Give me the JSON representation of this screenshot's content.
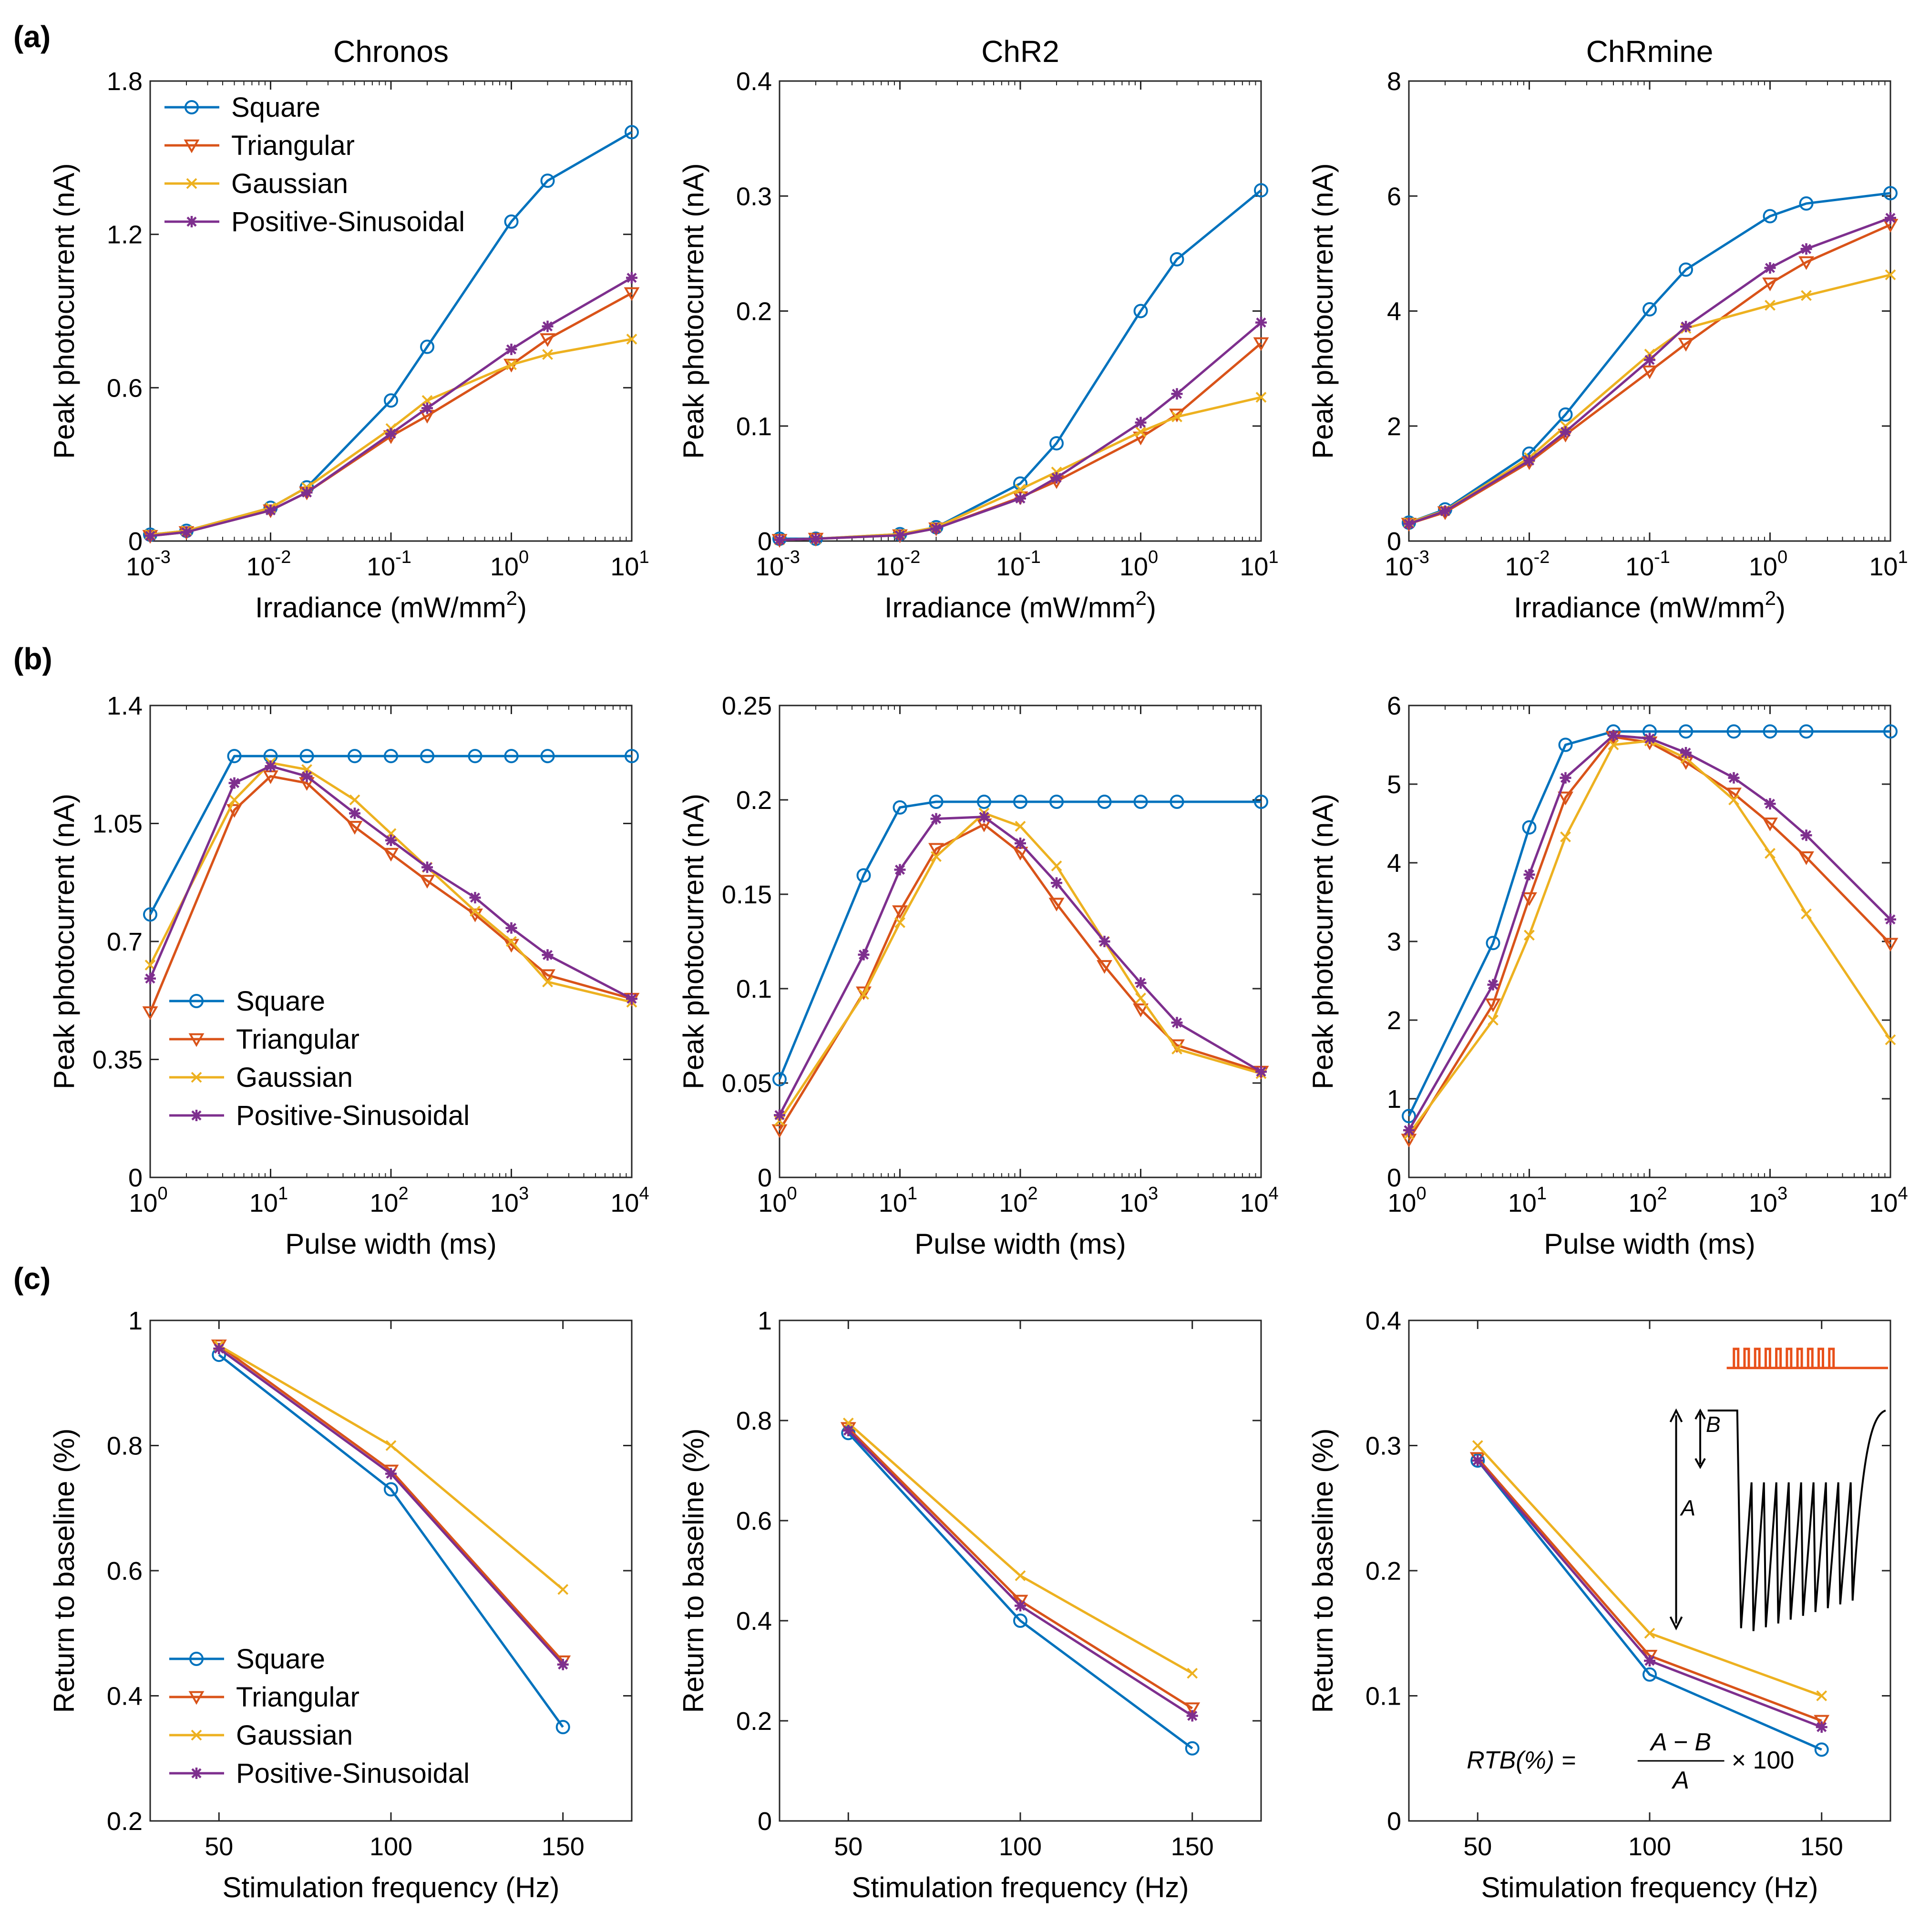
{
  "panel_labels": [
    "(a)",
    "(b)",
    "(c)"
  ],
  "colors": {
    "Square": "#0072BD",
    "Triangular": "#D95319",
    "Gaussian": "#EDB120",
    "Positive-Sinusoidal": "#7E2F8E",
    "axis": "#262626",
    "inset_pulses": "#E8501A",
    "inset_trace": "#000000"
  },
  "markers": {
    "Square": "circle",
    "Triangular": "triangle-down",
    "Gaussian": "x",
    "Positive-Sinusoidal": "asterisk"
  },
  "inset": {
    "label_a": "A",
    "label_b": "B",
    "formula_lhs": "RTB(%) =",
    "formula_num": "A − B",
    "formula_den": "A",
    "formula_tail": "× 100"
  },
  "chart_data": [
    {
      "id": "a1",
      "type": "line",
      "title": "Chronos",
      "xlabel": "Irradiance (mW/mm",
      "xlabel_sup": "2",
      "xlabel_tail": ")",
      "ylabel": "Peak photocurrent (nA)",
      "xscale": "log",
      "xlim": [
        0.001,
        10
      ],
      "ylim": [
        0,
        1.8
      ],
      "xticks": [
        0.001,
        0.01,
        0.1,
        1,
        10
      ],
      "xtick_labels": [
        [
          "10",
          "-3"
        ],
        [
          "10",
          "-2"
        ],
        [
          "10",
          "-1"
        ],
        [
          "10",
          "0"
        ],
        [
          "10",
          "1"
        ]
      ],
      "yticks": [
        0,
        0.6,
        1.2,
        1.8
      ],
      "ytick_labels": [
        "0",
        "0.6",
        "1.2",
        "1.8"
      ],
      "legend": "top-left",
      "x": [
        0.001,
        0.002,
        0.01,
        0.02,
        0.1,
        0.2,
        1,
        2,
        10
      ],
      "series": [
        {
          "name": "Square",
          "values": [
            0.025,
            0.04,
            0.13,
            0.21,
            0.55,
            0.76,
            1.25,
            1.41,
            1.6
          ]
        },
        {
          "name": "Triangular",
          "values": [
            0.02,
            0.035,
            0.12,
            0.19,
            0.41,
            0.49,
            0.69,
            0.79,
            0.97
          ]
        },
        {
          "name": "Gaussian",
          "values": [
            0.025,
            0.04,
            0.13,
            0.21,
            0.44,
            0.55,
            0.69,
            0.73,
            0.79
          ]
        },
        {
          "name": "Positive-Sinusoidal",
          "values": [
            0.02,
            0.035,
            0.12,
            0.19,
            0.42,
            0.52,
            0.75,
            0.84,
            1.03
          ]
        }
      ]
    },
    {
      "id": "a2",
      "type": "line",
      "title": "ChR2",
      "xlabel": "Irradiance (mW/mm",
      "xlabel_sup": "2",
      "xlabel_tail": ")",
      "ylabel": "Peak photocurrent (nA)",
      "xscale": "log",
      "xlim": [
        0.001,
        10
      ],
      "ylim": [
        0,
        0.4
      ],
      "xticks": [
        0.001,
        0.01,
        0.1,
        1,
        10
      ],
      "xtick_labels": [
        [
          "10",
          "-3"
        ],
        [
          "10",
          "-2"
        ],
        [
          "10",
          "-1"
        ],
        [
          "10",
          "0"
        ],
        [
          "10",
          "1"
        ]
      ],
      "yticks": [
        0,
        0.1,
        0.2,
        0.3,
        0.4
      ],
      "ytick_labels": [
        "0",
        "0.1",
        "0.2",
        "0.3",
        "0.4"
      ],
      "legend": "none",
      "x": [
        0.001,
        0.002,
        0.01,
        0.02,
        0.1,
        0.2,
        1,
        2,
        10
      ],
      "series": [
        {
          "name": "Square",
          "values": [
            0.002,
            0.002,
            0.006,
            0.012,
            0.05,
            0.085,
            0.2,
            0.245,
            0.305
          ]
        },
        {
          "name": "Triangular",
          "values": [
            0.001,
            0.002,
            0.005,
            0.011,
            0.038,
            0.052,
            0.09,
            0.11,
            0.172
          ]
        },
        {
          "name": "Gaussian",
          "values": [
            0.001,
            0.002,
            0.006,
            0.012,
            0.045,
            0.06,
            0.095,
            0.108,
            0.125
          ]
        },
        {
          "name": "Positive-Sinusoidal",
          "values": [
            0.001,
            0.002,
            0.005,
            0.011,
            0.037,
            0.055,
            0.103,
            0.128,
            0.19
          ]
        }
      ]
    },
    {
      "id": "a3",
      "type": "line",
      "title": "ChRmine",
      "xlabel": "Irradiance (mW/mm",
      "xlabel_sup": "2",
      "xlabel_tail": ")",
      "ylabel": "Peak photocurrent (nA)",
      "xscale": "log",
      "xlim": [
        0.001,
        10
      ],
      "ylim": [
        0,
        8
      ],
      "xticks": [
        0.001,
        0.01,
        0.1,
        1,
        10
      ],
      "xtick_labels": [
        [
          "10",
          "-3"
        ],
        [
          "10",
          "-2"
        ],
        [
          "10",
          "-1"
        ],
        [
          "10",
          "0"
        ],
        [
          "10",
          "1"
        ]
      ],
      "yticks": [
        0,
        2,
        4,
        6,
        8
      ],
      "ytick_labels": [
        "0",
        "2",
        "4",
        "6",
        "8"
      ],
      "legend": "none",
      "x": [
        0.001,
        0.002,
        0.01,
        0.02,
        0.1,
        0.2,
        1,
        2,
        10
      ],
      "series": [
        {
          "name": "Square",
          "values": [
            0.32,
            0.55,
            1.52,
            2.2,
            4.03,
            4.72,
            5.65,
            5.87,
            6.05
          ]
        },
        {
          "name": "Triangular",
          "values": [
            0.3,
            0.5,
            1.37,
            1.85,
            2.95,
            3.43,
            4.48,
            4.85,
            5.5
          ]
        },
        {
          "name": "Gaussian",
          "values": [
            0.32,
            0.53,
            1.45,
            2.0,
            3.25,
            3.7,
            4.1,
            4.27,
            4.63
          ]
        },
        {
          "name": "Positive-Sinusoidal",
          "values": [
            0.3,
            0.52,
            1.4,
            1.9,
            3.15,
            3.73,
            4.75,
            5.08,
            5.62
          ]
        }
      ]
    },
    {
      "id": "b1",
      "type": "line",
      "title": "",
      "xlabel": "Pulse width (ms)",
      "ylabel": "Peak photocurrent (nA)",
      "xscale": "log",
      "xlim": [
        1,
        10000
      ],
      "ylim": [
        0,
        1.4
      ],
      "xticks": [
        1,
        10,
        100,
        1000,
        10000
      ],
      "xtick_labels": [
        [
          "10",
          "0"
        ],
        [
          "10",
          "1"
        ],
        [
          "10",
          "2"
        ],
        [
          "10",
          "3"
        ],
        [
          "10",
          "4"
        ]
      ],
      "yticks": [
        0,
        0.35,
        0.7,
        1.05,
        1.4
      ],
      "ytick_labels": [
        "0",
        "0.35",
        "0.7",
        "1.05",
        "1.4"
      ],
      "legend": "bottom-left",
      "x": [
        1,
        5,
        10,
        20,
        50,
        100,
        200,
        500,
        1000,
        2000,
        10000
      ],
      "series": [
        {
          "name": "Square",
          "values": [
            0.78,
            1.25,
            1.25,
            1.25,
            1.25,
            1.25,
            1.25,
            1.25,
            1.25,
            1.25,
            1.25
          ]
        },
        {
          "name": "Triangular",
          "values": [
            0.49,
            1.09,
            1.19,
            1.17,
            1.04,
            0.96,
            0.88,
            0.78,
            0.69,
            0.6,
            0.53
          ]
        },
        {
          "name": "Gaussian",
          "values": [
            0.63,
            1.12,
            1.23,
            1.21,
            1.12,
            1.02,
            0.92,
            0.79,
            0.7,
            0.58,
            0.52
          ]
        },
        {
          "name": "Positive-Sinusoidal",
          "values": [
            0.59,
            1.17,
            1.22,
            1.19,
            1.08,
            1.0,
            0.92,
            0.83,
            0.74,
            0.66,
            0.53
          ]
        }
      ]
    },
    {
      "id": "b2",
      "type": "line",
      "title": "",
      "xlabel": "Pulse width (ms)",
      "ylabel": "Peak photocurrent (nA)",
      "xscale": "log",
      "xlim": [
        1,
        10000
      ],
      "ylim": [
        0,
        0.25
      ],
      "xticks": [
        1,
        10,
        100,
        1000,
        10000
      ],
      "xtick_labels": [
        [
          "10",
          "0"
        ],
        [
          "10",
          "1"
        ],
        [
          "10",
          "2"
        ],
        [
          "10",
          "3"
        ],
        [
          "10",
          "4"
        ]
      ],
      "yticks": [
        0,
        0.05,
        0.1,
        0.15,
        0.2,
        0.25
      ],
      "ytick_labels": [
        "0",
        "0.05",
        "0.1",
        "0.15",
        "0.2",
        "0.25"
      ],
      "legend": "none",
      "x": [
        1,
        5,
        10,
        20,
        50,
        100,
        200,
        500,
        1000,
        2000,
        10000
      ],
      "series": [
        {
          "name": "Square",
          "values": [
            0.052,
            0.16,
            0.196,
            0.199,
            0.199,
            0.199,
            0.199,
            0.199,
            0.199,
            0.199,
            0.199
          ]
        },
        {
          "name": "Triangular",
          "values": [
            0.025,
            0.098,
            0.141,
            0.174,
            0.187,
            0.172,
            0.145,
            0.112,
            0.089,
            0.07,
            0.056
          ]
        },
        {
          "name": "Gaussian",
          "values": [
            0.03,
            0.097,
            0.135,
            0.17,
            0.193,
            0.186,
            0.165,
            0.125,
            0.095,
            0.068,
            0.055
          ]
        },
        {
          "name": "Positive-Sinusoidal",
          "values": [
            0.033,
            0.118,
            0.163,
            0.19,
            0.191,
            0.177,
            0.156,
            0.125,
            0.103,
            0.082,
            0.056
          ]
        }
      ]
    },
    {
      "id": "b3",
      "type": "line",
      "title": "",
      "xlabel": "Pulse width (ms)",
      "ylabel": "Peak photocurrent (nA)",
      "xscale": "log",
      "xlim": [
        1,
        10000
      ],
      "ylim": [
        0,
        6
      ],
      "xticks": [
        1,
        10,
        100,
        1000,
        10000
      ],
      "xtick_labels": [
        [
          "10",
          "0"
        ],
        [
          "10",
          "1"
        ],
        [
          "10",
          "2"
        ],
        [
          "10",
          "3"
        ],
        [
          "10",
          "4"
        ]
      ],
      "yticks": [
        0,
        1,
        2,
        3,
        4,
        5,
        6
      ],
      "ytick_labels": [
        "0",
        "1",
        "2",
        "3",
        "4",
        "5",
        "6"
      ],
      "legend": "none",
      "x": [
        1,
        5,
        10,
        20,
        50,
        100,
        200,
        500,
        1000,
        2000,
        10000
      ],
      "series": [
        {
          "name": "Square",
          "values": [
            0.78,
            2.98,
            4.45,
            5.5,
            5.67,
            5.67,
            5.67,
            5.67,
            5.67,
            5.67,
            5.67
          ]
        },
        {
          "name": "Triangular",
          "values": [
            0.48,
            2.2,
            3.55,
            4.83,
            5.6,
            5.53,
            5.28,
            4.88,
            4.5,
            4.07,
            2.97
          ]
        },
        {
          "name": "Gaussian",
          "values": [
            0.55,
            2.0,
            3.08,
            4.33,
            5.5,
            5.55,
            5.33,
            4.8,
            4.12,
            3.35,
            1.75
          ]
        },
        {
          "name": "Positive-Sinusoidal",
          "values": [
            0.6,
            2.45,
            3.85,
            5.08,
            5.62,
            5.58,
            5.4,
            5.08,
            4.75,
            4.35,
            3.28
          ]
        }
      ]
    },
    {
      "id": "c1",
      "type": "line",
      "title": "",
      "xlabel": "Stimulation frequency (Hz)",
      "ylabel": "Return to baseline (%)",
      "xscale": "linear",
      "xlim": [
        30,
        170
      ],
      "ylim": [
        0.2,
        1
      ],
      "xticks": [
        50,
        100,
        150
      ],
      "xtick_labels": [
        "50",
        "100",
        "150"
      ],
      "yticks": [
        0.2,
        0.4,
        0.6,
        0.8,
        1
      ],
      "ytick_labels": [
        "0.2",
        "0.4",
        "0.6",
        "0.8",
        "1"
      ],
      "legend": "bottom-left",
      "x": [
        50,
        100,
        150
      ],
      "series": [
        {
          "name": "Square",
          "values": [
            0.945,
            0.73,
            0.35
          ]
        },
        {
          "name": "Triangular",
          "values": [
            0.96,
            0.76,
            0.455
          ]
        },
        {
          "name": "Gaussian",
          "values": [
            0.96,
            0.8,
            0.57
          ]
        },
        {
          "name": "Positive-Sinusoidal",
          "values": [
            0.955,
            0.755,
            0.45
          ]
        }
      ]
    },
    {
      "id": "c2",
      "type": "line",
      "title": "",
      "xlabel": "Stimulation frequency (Hz)",
      "ylabel": "Return to baseline (%)",
      "xscale": "linear",
      "xlim": [
        30,
        170
      ],
      "ylim": [
        0,
        1
      ],
      "xticks": [
        50,
        100,
        150
      ],
      "xtick_labels": [
        "50",
        "100",
        "150"
      ],
      "yticks": [
        0,
        0.2,
        0.4,
        0.6,
        0.8,
        1
      ],
      "ytick_labels": [
        "0",
        "0.2",
        "0.4",
        "0.6",
        "0.8",
        "1"
      ],
      "legend": "none",
      "x": [
        50,
        100,
        150
      ],
      "series": [
        {
          "name": "Square",
          "values": [
            0.775,
            0.4,
            0.145
          ]
        },
        {
          "name": "Triangular",
          "values": [
            0.785,
            0.44,
            0.225
          ]
        },
        {
          "name": "Gaussian",
          "values": [
            0.795,
            0.49,
            0.295
          ]
        },
        {
          "name": "Positive-Sinusoidal",
          "values": [
            0.78,
            0.43,
            0.21
          ]
        }
      ]
    },
    {
      "id": "c3",
      "type": "line",
      "title": "",
      "xlabel": "Stimulation frequency (Hz)",
      "ylabel": "Return to baseline (%)",
      "xscale": "linear",
      "xlim": [
        30,
        170
      ],
      "ylim": [
        0,
        0.4
      ],
      "xticks": [
        50,
        100,
        150
      ],
      "xtick_labels": [
        "50",
        "100",
        "150"
      ],
      "yticks": [
        0,
        0.1,
        0.2,
        0.3,
        0.4
      ],
      "ytick_labels": [
        "0",
        "0.1",
        "0.2",
        "0.3",
        "0.4"
      ],
      "legend": "none",
      "inset": true,
      "x": [
        50,
        100,
        150
      ],
      "series": [
        {
          "name": "Square",
          "values": [
            0.288,
            0.117,
            0.057
          ]
        },
        {
          "name": "Triangular",
          "values": [
            0.29,
            0.132,
            0.08
          ]
        },
        {
          "name": "Gaussian",
          "values": [
            0.3,
            0.15,
            0.1
          ]
        },
        {
          "name": "Positive-Sinusoidal",
          "values": [
            0.288,
            0.128,
            0.075
          ]
        }
      ]
    }
  ]
}
